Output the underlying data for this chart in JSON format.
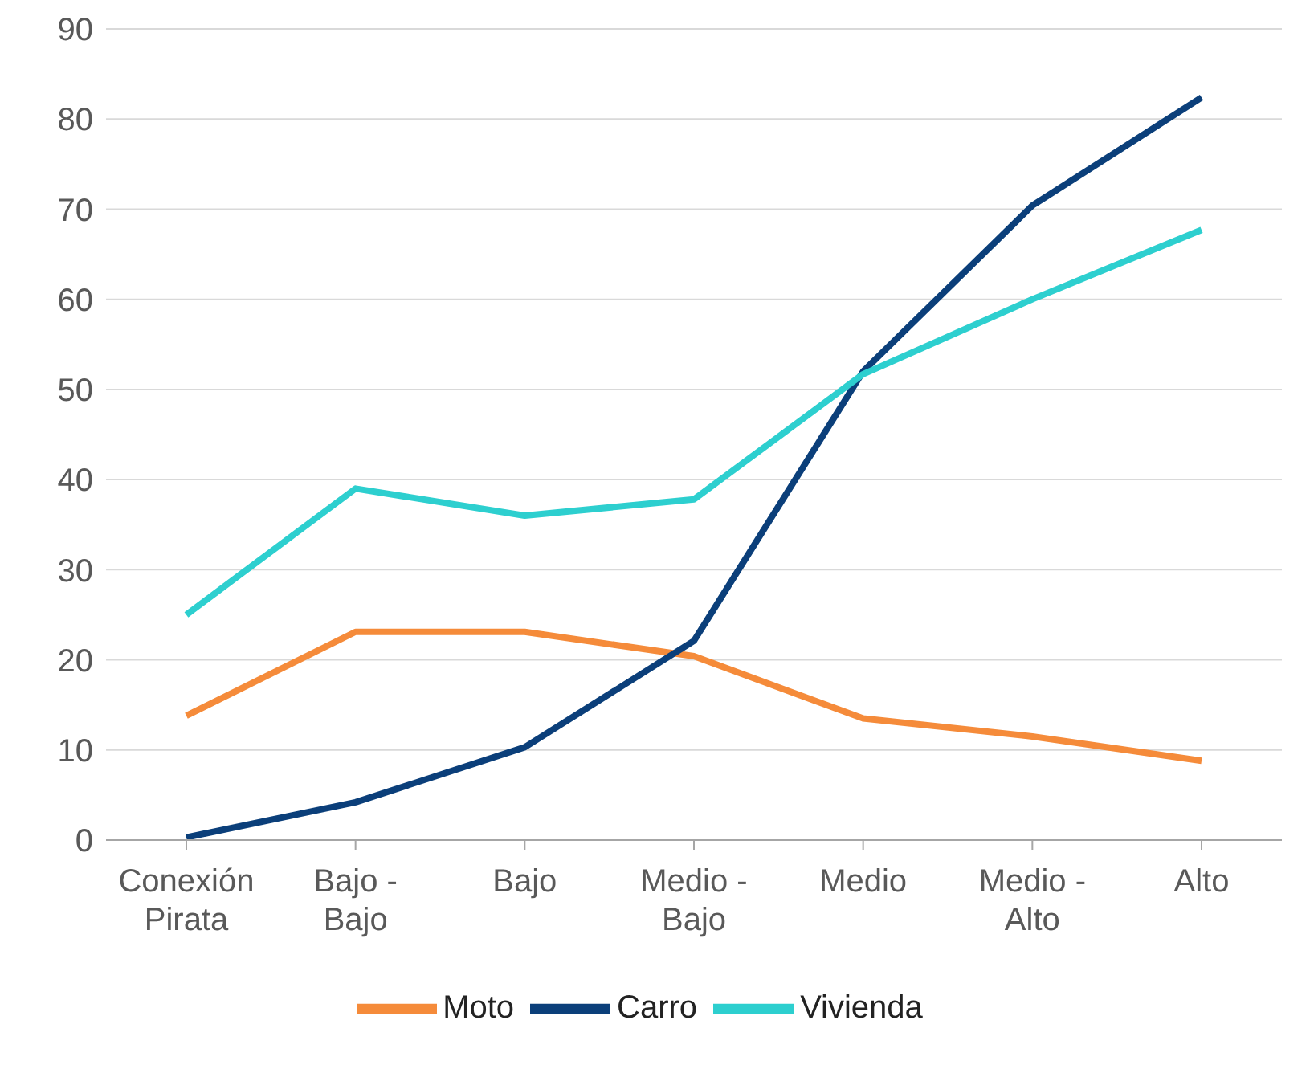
{
  "chart_data": {
    "type": "line",
    "categories": [
      "Conexión Pirata",
      "Bajo - Bajo",
      "Bajo",
      "Medio - Bajo",
      "Medio",
      "Medio - Alto",
      "Alto"
    ],
    "series": [
      {
        "name": "Moto",
        "color": "#f58b3a",
        "values": [
          13.8,
          23.1,
          23.1,
          20.4,
          13.5,
          11.5,
          8.8
        ]
      },
      {
        "name": "Carro",
        "color": "#0b3f7a",
        "values": [
          0.3,
          4.2,
          10.3,
          22.1,
          52.0,
          70.4,
          82.4
        ]
      },
      {
        "name": "Vivienda",
        "color": "#2dcfcf",
        "values": [
          25.0,
          39.0,
          36.0,
          37.8,
          51.7,
          60.0,
          67.7
        ]
      }
    ],
    "ylim": [
      0,
      90
    ],
    "yticks": [
      0,
      10,
      20,
      30,
      40,
      50,
      60,
      70,
      80,
      90
    ],
    "grid": "y",
    "legend": "bottom",
    "marker": "none",
    "line_style": "solid"
  }
}
